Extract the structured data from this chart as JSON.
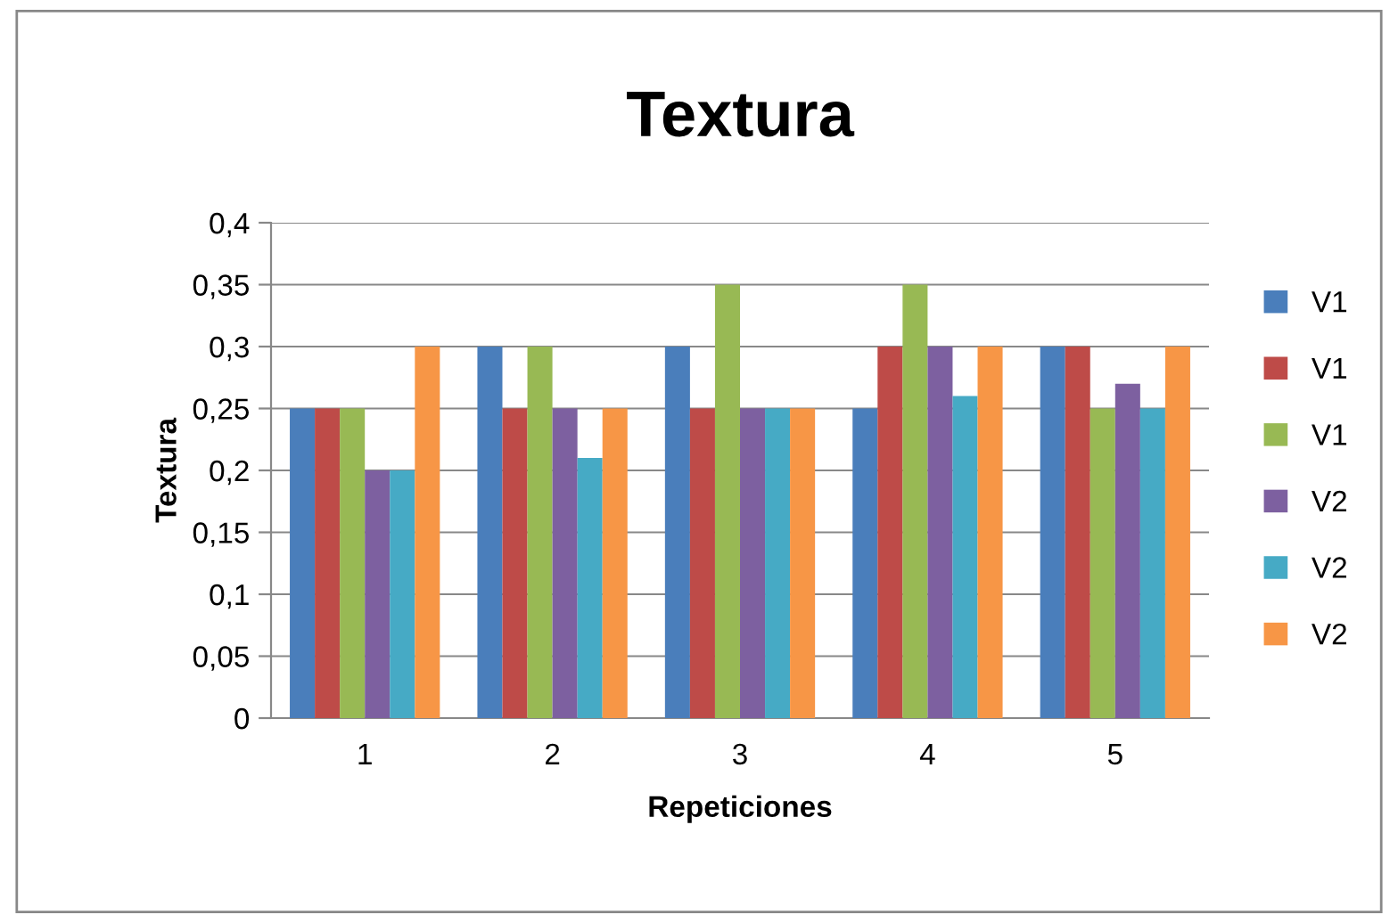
{
  "chart_data": {
    "type": "bar",
    "title": "Textura",
    "xlabel": "Repeticiones",
    "ylabel": "Textura",
    "categories": [
      "1",
      "2",
      "3",
      "4",
      "5"
    ],
    "series": [
      {
        "name": "V1",
        "color": "#4a7ebb",
        "values": [
          0.25,
          0.3,
          0.3,
          0.25,
          0.3
        ]
      },
      {
        "name": "V1",
        "color": "#be4b48",
        "values": [
          0.25,
          0.25,
          0.25,
          0.3,
          0.3
        ]
      },
      {
        "name": "V1",
        "color": "#98b954",
        "values": [
          0.25,
          0.3,
          0.35,
          0.35,
          0.25
        ]
      },
      {
        "name": "V2",
        "color": "#7d60a0",
        "values": [
          0.2,
          0.25,
          0.25,
          0.3,
          0.27
        ]
      },
      {
        "name": "V2",
        "color": "#46aac5",
        "values": [
          0.2,
          0.21,
          0.25,
          0.26,
          0.25
        ]
      },
      {
        "name": "V2",
        "color": "#f79646",
        "values": [
          0.3,
          0.25,
          0.25,
          0.3,
          0.3
        ]
      }
    ],
    "ylim": [
      0,
      0.4
    ],
    "yticks": [
      0,
      {
        "value": 0.05,
        "label": "0,05"
      },
      {
        "value": 0.1,
        "label": "0,1"
      },
      {
        "value": 0.15,
        "label": "0,15"
      },
      {
        "value": 0.2,
        "label": "0,2"
      },
      {
        "value": 0.25,
        "label": "0,25"
      },
      {
        "value": 0.3,
        "label": "0,3"
      },
      {
        "value": 0.35,
        "label": "0,35"
      },
      {
        "value": 0.4,
        "label": "0,4"
      }
    ],
    "grid": "y",
    "legend": "right"
  }
}
